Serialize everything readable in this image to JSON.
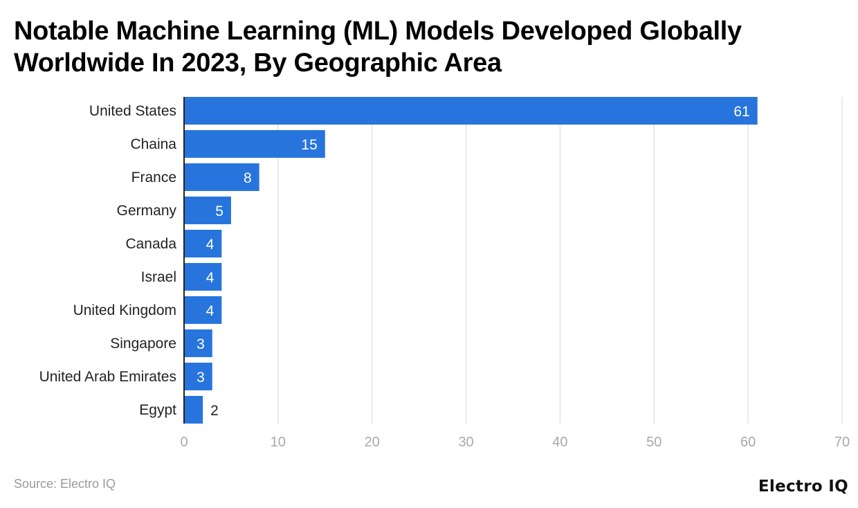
{
  "chart_data": {
    "type": "bar",
    "orientation": "horizontal",
    "title": "Notable Machine Learning (ML) Models Developed Globally Worldwide In 2023, By Geographic Area",
    "categories": [
      "United States",
      "Chaina",
      "France",
      "Germany",
      "Canada",
      "Israel",
      "United Kingdom",
      "Singapore",
      "United Arab Emirates",
      "Egypt"
    ],
    "values": [
      61,
      15,
      8,
      5,
      4,
      4,
      4,
      3,
      3,
      2
    ],
    "xlim": [
      0,
      70
    ],
    "xticks": [
      0,
      10,
      20,
      30,
      40,
      50,
      60,
      70
    ],
    "xlabel": "",
    "ylabel": "",
    "grid": true,
    "bar_color": "#2775dc",
    "data_labels": true
  },
  "source": "Source: Electro IQ",
  "logo": "Electro IQ"
}
